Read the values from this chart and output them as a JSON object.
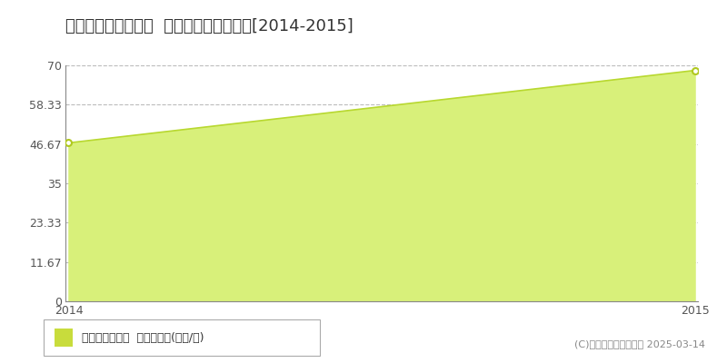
{
  "title": "静岡市駿河区桃園町  マンション価格推移[2014-2015]",
  "x_values": [
    2014,
    2015
  ],
  "y_values": [
    47.0,
    68.5
  ],
  "fill_color": "#d8f07a",
  "line_color": "#b8d830",
  "marker_color": "#ffffff",
  "marker_edge_color": "#b0c820",
  "yticks": [
    0,
    11.67,
    23.33,
    35,
    46.67,
    58.33,
    70
  ],
  "ytick_labels": [
    "0",
    "11.67",
    "23.33",
    "35",
    "46.67",
    "58.33",
    "70"
  ],
  "xlim": [
    2014,
    2015
  ],
  "ylim": [
    0,
    70
  ],
  "grid_color": "#bbbbbb",
  "bg_color": "#ffffff",
  "legend_label": "マンション価格  平均坪単価(万円/坪)",
  "legend_color": "#c8dc3c",
  "copyright_text": "(C)土地価格ドットコム 2025-03-14",
  "title_fontsize": 13,
  "tick_fontsize": 9,
  "legend_fontsize": 9,
  "copyright_fontsize": 8
}
